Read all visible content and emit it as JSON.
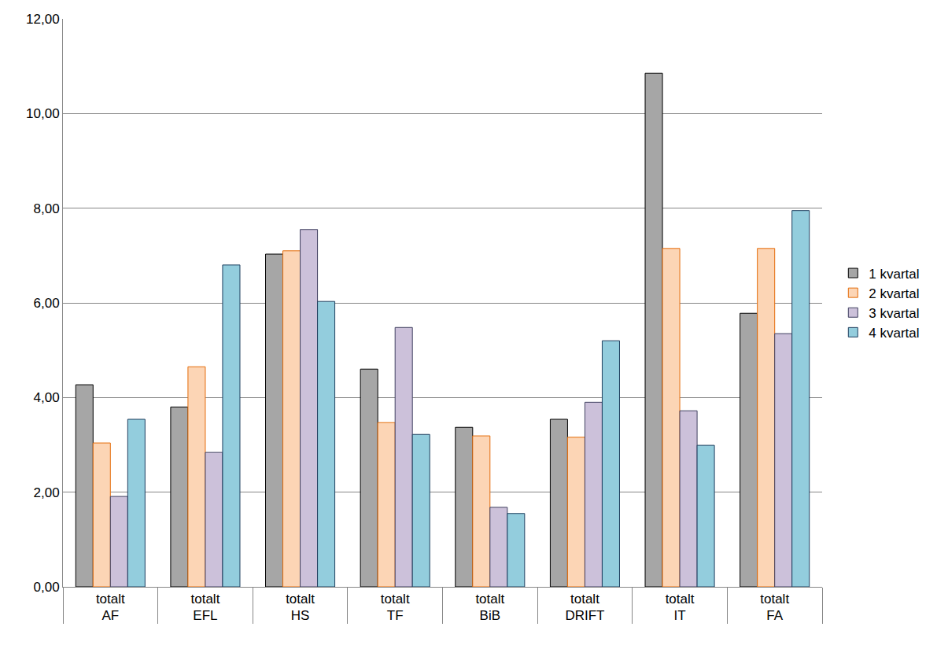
{
  "chart_data": {
    "type": "bar",
    "categories": [
      [
        "AF",
        "totalt"
      ],
      [
        "EFL",
        "totalt"
      ],
      [
        "HS",
        "totalt"
      ],
      [
        "TF",
        "totalt"
      ],
      [
        "BiB",
        "totalt"
      ],
      [
        "DRIFT",
        "totalt"
      ],
      [
        "IT",
        "totalt"
      ],
      [
        "FA",
        "totalt"
      ]
    ],
    "series": [
      {
        "name": "1 kvartal",
        "color": "#a6a6a6",
        "values": [
          4.27,
          3.8,
          7.03,
          4.6,
          3.37,
          3.54,
          10.85,
          5.78
        ]
      },
      {
        "name": "2 kvartal",
        "color": "#fcd5b5",
        "values": [
          3.04,
          4.65,
          7.1,
          3.47,
          3.19,
          3.16,
          7.15,
          7.15
        ]
      },
      {
        "name": "3 kvartal",
        "color": "#ccc1da",
        "values": [
          1.91,
          2.84,
          7.55,
          5.48,
          1.68,
          3.9,
          3.72,
          5.35
        ]
      },
      {
        "name": "4 kvartal",
        "color": "#93cddd",
        "values": [
          3.54,
          6.8,
          6.03,
          3.22,
          1.55,
          5.2,
          2.99,
          7.95
        ]
      }
    ],
    "ylim": [
      0,
      12
    ],
    "yticks": [
      {
        "value": 0,
        "label": "0,00"
      },
      {
        "value": 2,
        "label": "2,00"
      },
      {
        "value": 4,
        "label": "4,00"
      },
      {
        "value": 6,
        "label": "6,00"
      },
      {
        "value": 8,
        "label": "8,00"
      },
      {
        "value": 10,
        "label": "10,00"
      },
      {
        "value": 12,
        "label": "12,00"
      }
    ],
    "grid": true,
    "legend": "right"
  }
}
